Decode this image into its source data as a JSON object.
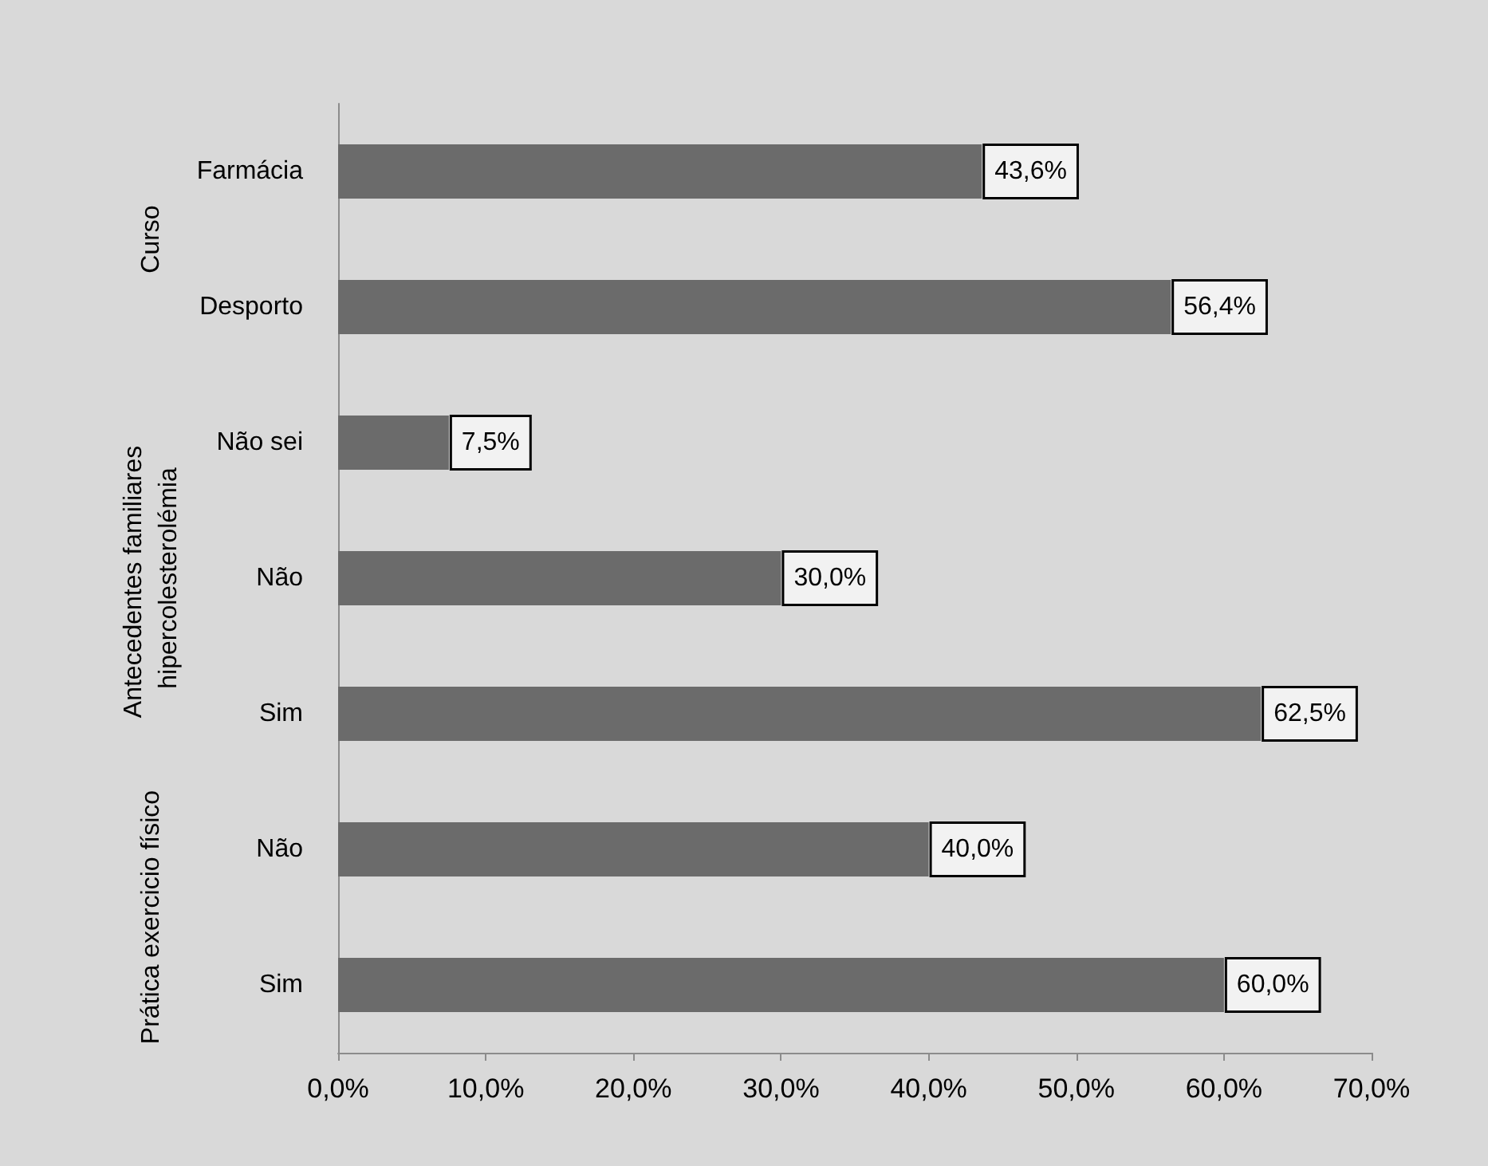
{
  "chart_data": {
    "type": "bar",
    "orientation": "horizontal",
    "categories": [
      "Farmácia",
      "Desporto",
      "Não sei",
      "Não",
      "Sim",
      "Não",
      "Sim"
    ],
    "values": [
      43.6,
      56.4,
      7.5,
      30.0,
      62.5,
      40.0,
      60.0
    ],
    "value_labels": [
      "43,6%",
      "56,4%",
      "7,5%",
      "30,0%",
      "62,5%",
      "40,0%",
      "60,0%"
    ],
    "color": "#6b6b6b",
    "xlim": [
      0,
      70
    ],
    "xticks": [
      {
        "value": 0,
        "label": "0,0%"
      },
      {
        "value": 10,
        "label": "10,0%"
      },
      {
        "value": 20,
        "label": "20,0%"
      },
      {
        "value": 30,
        "label": "30,0%"
      },
      {
        "value": 40,
        "label": "40,0%"
      },
      {
        "value": 50,
        "label": "50,0%"
      },
      {
        "value": 60,
        "label": "60,0%"
      },
      {
        "value": 70,
        "label": "70,0%"
      }
    ],
    "annotations": [
      "Curso",
      "Antecedentes familiares hipercolesterolémia",
      "Prática exercicio físico"
    ],
    "grid": false
  }
}
